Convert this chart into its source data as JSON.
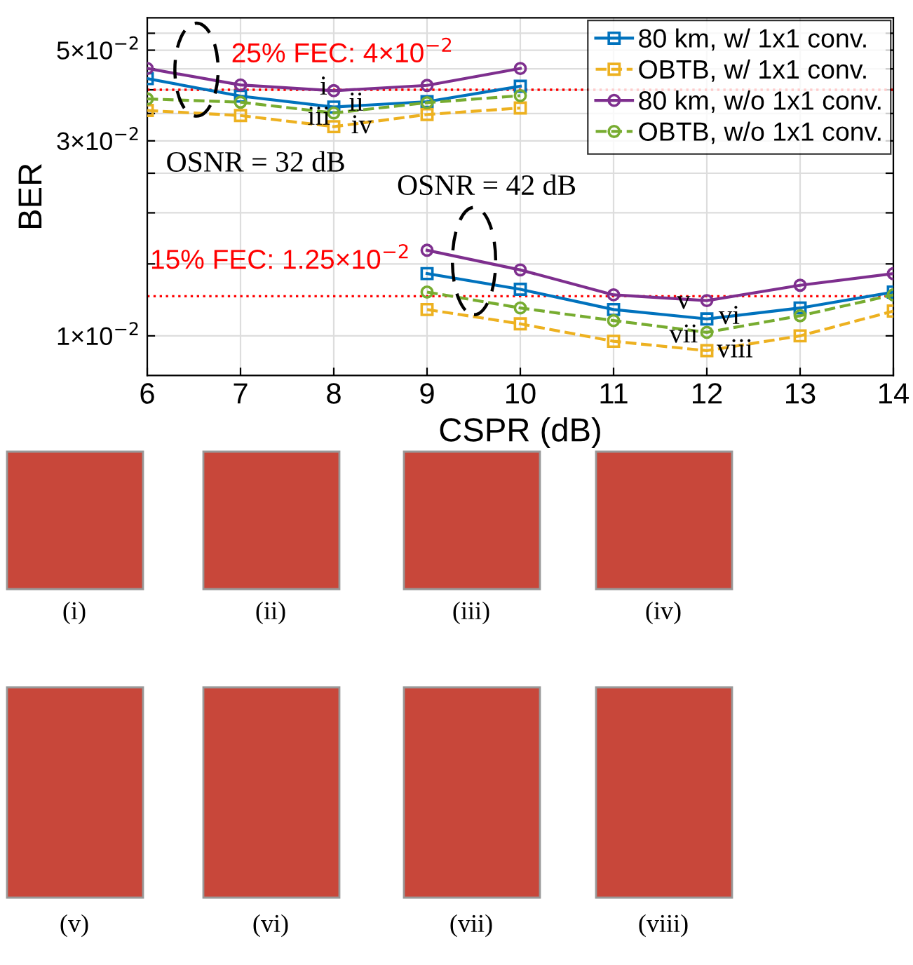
{
  "chart_data": {
    "type": "line",
    "xlabel": "CSPR (dB)",
    "ylabel": "BER",
    "log": "y",
    "grid": true,
    "legend": "top right",
    "xlim": [
      6,
      14
    ],
    "xticks": [
      6,
      7,
      8,
      9,
      10,
      11,
      12,
      13,
      14
    ],
    "ylim": [
      0.008,
      0.06
    ],
    "yticks": [
      {
        "value": 0.01,
        "label": "1×10$^{−2}$"
      },
      {
        "value": 0.015,
        "label": null
      },
      {
        "value": 0.02,
        "label": null
      },
      {
        "value": 0.025,
        "label": null
      },
      {
        "value": 0.03,
        "label": "3×10$^{−2}$"
      },
      {
        "value": 0.035,
        "label": null
      },
      {
        "value": 0.04,
        "label": null
      },
      {
        "value": 0.045,
        "label": null
      },
      {
        "value": 0.05,
        "label": "5×10$^{−2}$"
      },
      {
        "value": 0.055,
        "label": null
      }
    ],
    "series": [
      {
        "name": "80 km, w/ 1x1 conv.",
        "color": "#0072bd",
        "marker": "square",
        "line_style": "solid",
        "x": [
          6,
          7,
          8,
          9,
          10
        ],
        "values": [
          0.0426,
          0.0386,
          0.0363,
          0.0374,
          0.0408
        ]
      },
      {
        "name": "OBTB, w/ 1x1 conv.",
        "color": "#edb120",
        "marker": "square",
        "line_style": "dashed",
        "x": [
          6,
          7,
          8,
          9,
          10
        ],
        "values": [
          0.0356,
          0.0346,
          0.0325,
          0.0348,
          0.0361
        ]
      },
      {
        "name": "80 km, w/o 1x1 conv.",
        "color": "#7e2f8e",
        "marker": "circle",
        "line_style": "solid",
        "x": [
          6,
          7,
          8,
          9,
          10
        ],
        "values": [
          0.0451,
          0.0411,
          0.0398,
          0.041,
          0.0451
        ]
      },
      {
        "name": "OBTB, w/o 1x1 conv.",
        "color": "#77ac30",
        "marker": "circle",
        "line_style": "dashed",
        "x": [
          6,
          7,
          8,
          9,
          10
        ],
        "values": [
          0.038,
          0.0373,
          0.0351,
          0.0372,
          0.0387
        ]
      },
      {
        "color": "#0072bd",
        "marker": "square",
        "line_style": "solid",
        "x": [
          9,
          10,
          11,
          12,
          13,
          14
        ],
        "values": [
          0.0142,
          0.013,
          0.0116,
          0.011,
          0.0117,
          0.0128
        ]
      },
      {
        "color": "#edb120",
        "marker": "square",
        "line_style": "dashed",
        "x": [
          9,
          10,
          11,
          12,
          13,
          14
        ],
        "values": [
          0.0116,
          0.0107,
          0.0097,
          0.0092,
          0.01,
          0.0115
        ]
      },
      {
        "color": "#7e2f8e",
        "marker": "circle",
        "line_style": "solid",
        "x": [
          9,
          10,
          11,
          12,
          13,
          14
        ],
        "values": [
          0.0162,
          0.0145,
          0.0126,
          0.0122,
          0.0133,
          0.0142
        ]
      },
      {
        "color": "#77ac30",
        "marker": "circle",
        "line_style": "dashed",
        "x": [
          9,
          10,
          11,
          12,
          13,
          14
        ],
        "values": [
          0.0128,
          0.0117,
          0.0109,
          0.0102,
          0.0112,
          0.0126
        ]
      }
    ],
    "ref_lines": [
      {
        "axis": "y",
        "value": 0.04,
        "label": "25% FEC: 4×10$^{−2}$",
        "color": "#ff0000",
        "line_style": "dotted"
      },
      {
        "axis": "y",
        "value": 0.0125,
        "label": "15% FEC: 1.25×10$^{−2}$",
        "color": "#ff0000",
        "line_style": "dotted"
      }
    ],
    "annotations": [
      {
        "text": "i",
        "x": 7.89,
        "y": 0.0404
      },
      {
        "text": "ii",
        "x": 8.24,
        "y": 0.0369
      },
      {
        "text": "iii",
        "x": 7.84,
        "y": 0.0341
      },
      {
        "text": "iv",
        "x": 8.3,
        "y": 0.0325
      },
      {
        "text": "v",
        "x": 11.75,
        "y": 0.0121
      },
      {
        "text": "vi",
        "x": 12.24,
        "y": 0.0111
      },
      {
        "text": "vii",
        "x": 11.75,
        "y": 0.01
      },
      {
        "text": "viii",
        "x": 12.3,
        "y": 0.0092
      },
      "OSNR = 32 dB",
      "OSNR = 42 dB",
      "(i)",
      "(ii)",
      "(iii)",
      "(iv)",
      "(v)",
      "(vi)",
      "(vii)",
      "(viii)"
    ]
  }
}
